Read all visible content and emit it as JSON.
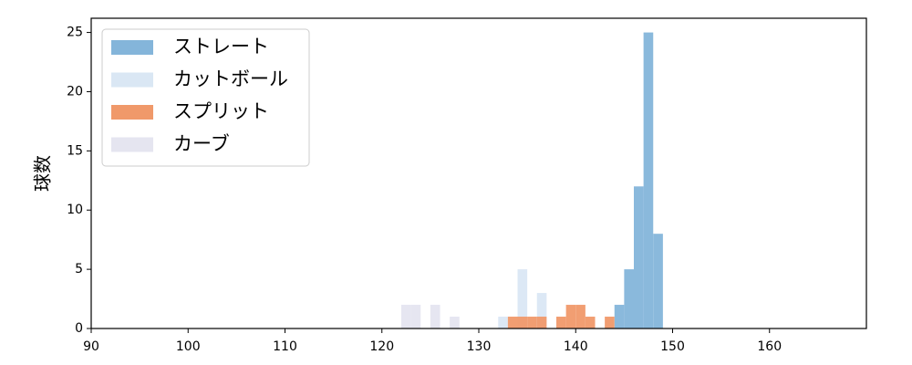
{
  "chart_data": {
    "type": "histogram",
    "y_label": "球数",
    "xlim": [
      90,
      170
    ],
    "xticks": [
      90,
      100,
      110,
      120,
      130,
      140,
      150,
      160
    ],
    "ylim": [
      0,
      26.2
    ],
    "yticks": [
      0,
      5,
      10,
      15,
      20,
      25
    ],
    "legend": "upper left",
    "series": [
      {
        "name": "ストレート",
        "color": "#84b5da",
        "bins": [
          144,
          145,
          146,
          147,
          148,
          149
        ],
        "counts": [
          2,
          5,
          12,
          25,
          8
        ]
      },
      {
        "name": "カットボール",
        "color": "#dae7f4",
        "bins": [
          132,
          133,
          134,
          135,
          136,
          137
        ],
        "counts": [
          1,
          0,
          5,
          0,
          3
        ]
      },
      {
        "name": "スプリット",
        "color": "#f0996a",
        "bins": [
          133,
          134,
          135,
          136,
          137,
          138,
          139,
          140,
          141,
          142,
          143,
          144
        ],
        "counts": [
          1,
          1,
          1,
          1,
          0,
          1,
          2,
          2,
          1,
          0,
          1
        ]
      },
      {
        "name": "カーブ",
        "color": "#e5e5f0",
        "bins": [
          122,
          123,
          124,
          125,
          126,
          127,
          128
        ],
        "counts": [
          2,
          2,
          0,
          2,
          0,
          1
        ]
      }
    ]
  }
}
